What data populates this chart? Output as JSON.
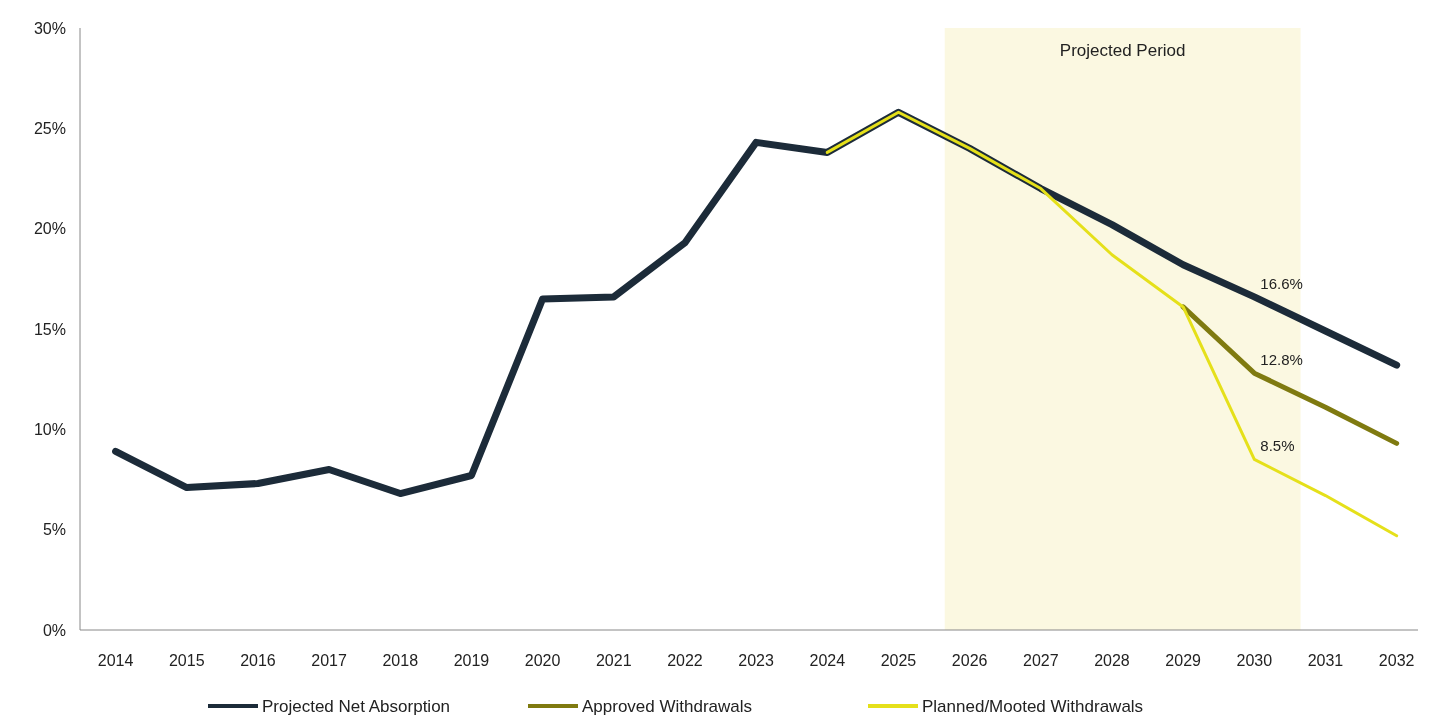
{
  "chart_data": {
    "type": "line",
    "x": [
      2014,
      2015,
      2016,
      2017,
      2018,
      2019,
      2020,
      2021,
      2022,
      2023,
      2024,
      2025,
      2026,
      2027,
      2028,
      2029,
      2030,
      2031,
      2032
    ],
    "series": [
      {
        "name": "Projected Net Absorption",
        "color": "#1c2b39",
        "values": [
          8.9,
          7.1,
          7.3,
          8.0,
          6.8,
          7.7,
          16.5,
          16.6,
          19.3,
          24.3,
          23.8,
          25.8,
          24.0,
          22.0,
          20.2,
          18.2,
          16.6,
          14.9,
          13.2
        ],
        "value_labels": [
          null,
          null,
          null,
          null,
          null,
          null,
          null,
          null,
          null,
          null,
          null,
          null,
          null,
          null,
          null,
          null,
          "16.6%",
          null,
          null
        ]
      },
      {
        "name": "Approved Withdrawals",
        "color": "#7f7a10",
        "values": [
          null,
          null,
          null,
          null,
          null,
          null,
          null,
          null,
          null,
          null,
          null,
          null,
          null,
          null,
          null,
          16.1,
          12.8,
          11.1,
          9.3
        ],
        "value_labels": [
          null,
          null,
          null,
          null,
          null,
          null,
          null,
          null,
          null,
          null,
          null,
          null,
          null,
          null,
          null,
          null,
          "12.8%",
          null,
          null
        ]
      },
      {
        "name": "Planned/Mooted Withdrawals",
        "color": "#e5e01a",
        "values": [
          null,
          null,
          null,
          null,
          null,
          null,
          null,
          null,
          null,
          null,
          23.8,
          25.8,
          24.0,
          22.0,
          18.7,
          16.1,
          8.5,
          6.7,
          4.7
        ],
        "value_labels": [
          null,
          null,
          null,
          null,
          null,
          null,
          null,
          null,
          null,
          null,
          null,
          null,
          null,
          null,
          null,
          null,
          "8.5%",
          null,
          null
        ]
      }
    ],
    "xlim": [
      2013.5,
      2032.3
    ],
    "xticks": [
      2014,
      2015,
      2016,
      2017,
      2018,
      2019,
      2020,
      2021,
      2022,
      2023,
      2024,
      2025,
      2026,
      2027,
      2028,
      2029,
      2030,
      2031,
      2032
    ],
    "ylim": [
      0,
      30
    ],
    "yticks": [
      {
        "value": 0,
        "label": "0%"
      },
      {
        "value": 5,
        "label": "5%"
      },
      {
        "value": 10,
        "label": "10%"
      },
      {
        "value": 15,
        "label": "15%"
      },
      {
        "value": 20,
        "label": "20%"
      },
      {
        "value": 25,
        "label": "25%"
      },
      {
        "value": 30,
        "label": "30%"
      }
    ],
    "bands": [
      {
        "axis": "x",
        "from": 2025.65,
        "to": 2030.65,
        "label": "Projected Period",
        "color": "#fbf8e1"
      }
    ],
    "legend": "bottom",
    "grid": false,
    "marker": "none",
    "line_style": "solid"
  }
}
